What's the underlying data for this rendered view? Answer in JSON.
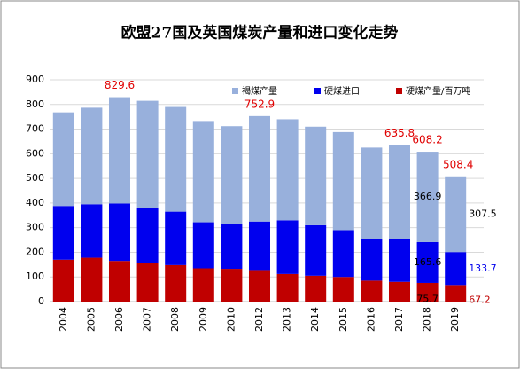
{
  "chart_data": {
    "type": "stacked-bar",
    "title": "欧盟27国及英国煤炭产量和进口变化走势",
    "categories": [
      "2004",
      "2005",
      "2006",
      "2007",
      "2008",
      "2009",
      "2010",
      "2012",
      "2013",
      "2014",
      "2015",
      "2016",
      "2017",
      "2018",
      "2019"
    ],
    "series": [
      {
        "name": "硬煤产量/百万吨",
        "color": "#c00000",
        "values": [
          170,
          178,
          165,
          157,
          148,
          135,
          133,
          128,
          112,
          105,
          100,
          85,
          80,
          75.7,
          67.2
        ],
        "value_labels": [
          null,
          null,
          null,
          null,
          null,
          null,
          null,
          null,
          null,
          null,
          null,
          null,
          null,
          "75.7",
          "67.2"
        ]
      },
      {
        "name": "硬煤进口",
        "color": "#0000ee",
        "values": [
          218,
          217,
          233,
          223,
          217,
          187,
          182,
          197,
          218,
          205,
          190,
          170,
          175,
          165.6,
          133.7
        ],
        "value_labels": [
          null,
          null,
          null,
          null,
          null,
          null,
          null,
          null,
          null,
          null,
          null,
          null,
          null,
          "165.6",
          "133.7"
        ]
      },
      {
        "name": "褐煤产量",
        "color": "#98b0dc",
        "values": [
          380,
          392,
          431.6,
          435,
          425,
          411,
          397,
          427.9,
          410,
          400,
          398,
          370,
          380.8,
          366.9,
          307.5
        ],
        "value_labels": [
          null,
          null,
          null,
          null,
          null,
          null,
          null,
          null,
          null,
          null,
          null,
          null,
          null,
          "366.9",
          "307.5"
        ]
      }
    ],
    "totals": [
      null,
      null,
      829.6,
      null,
      null,
      null,
      null,
      752.9,
      null,
      null,
      null,
      null,
      635.8,
      608.2,
      508.4
    ],
    "ylim": [
      0,
      900
    ],
    "yticks": [
      0,
      100,
      200,
      300,
      400,
      500,
      600,
      700,
      800,
      900
    ],
    "grid": true
  }
}
